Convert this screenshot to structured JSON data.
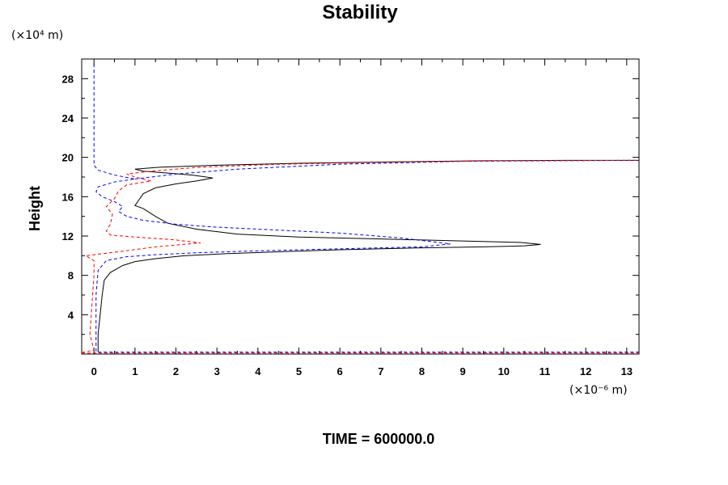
{
  "chart_data": {
    "type": "line",
    "title": "Stability",
    "ylabel": "Height",
    "y_unit": "(×10⁴ m)",
    "x_unit": "(×10⁻⁶ m)",
    "footer": "TIME = 600000.0",
    "xlim": [
      -0.3,
      13.3
    ],
    "ylim": [
      0,
      30
    ],
    "x_ticks": [
      0,
      1,
      2,
      3,
      4,
      5,
      6,
      7,
      8,
      9,
      10,
      11,
      12,
      13
    ],
    "y_ticks": [
      4,
      8,
      12,
      16,
      20,
      24,
      28
    ],
    "series": [
      {
        "style": "solid",
        "color": "#000000",
        "points": [
          [
            0.1,
            0.2
          ],
          [
            0.1,
            2
          ],
          [
            0.15,
            4
          ],
          [
            0.2,
            6
          ],
          [
            0.25,
            7.5
          ],
          [
            0.4,
            8.3
          ],
          [
            0.7,
            9.0
          ],
          [
            1.0,
            9.4
          ],
          [
            1.5,
            9.7
          ],
          [
            2.2,
            10.0
          ],
          [
            3.2,
            10.2
          ],
          [
            4.5,
            10.4
          ],
          [
            6.0,
            10.6
          ],
          [
            8.0,
            10.8
          ],
          [
            9.5,
            10.9
          ],
          [
            10.5,
            11.0
          ],
          [
            10.9,
            11.15
          ],
          [
            10.4,
            11.35
          ],
          [
            9.0,
            11.5
          ],
          [
            7.0,
            11.7
          ],
          [
            5.0,
            11.9
          ],
          [
            3.5,
            12.2
          ],
          [
            2.5,
            12.7
          ],
          [
            1.8,
            13.3
          ],
          [
            1.5,
            14.0
          ],
          [
            1.2,
            14.8
          ],
          [
            1.0,
            15.1
          ],
          [
            1.1,
            15.7
          ],
          [
            1.2,
            16.3
          ],
          [
            1.5,
            16.9
          ],
          [
            2.0,
            17.3
          ],
          [
            2.5,
            17.6
          ],
          [
            2.9,
            17.9
          ],
          [
            2.4,
            18.2
          ],
          [
            1.8,
            18.4
          ],
          [
            1.2,
            18.6
          ],
          [
            1.0,
            18.8
          ],
          [
            1.6,
            19.0
          ],
          [
            3.0,
            19.2
          ],
          [
            5.0,
            19.4
          ],
          [
            7.5,
            19.55
          ],
          [
            9.5,
            19.65
          ],
          [
            11.5,
            19.7
          ],
          [
            13.3,
            19.7
          ]
        ]
      },
      {
        "style": "dashed",
        "color": "#0000ff",
        "points": [
          [
            0.0,
            29.5
          ],
          [
            0.0,
            19.2
          ],
          [
            0.1,
            18.7
          ],
          [
            0.5,
            18.2
          ],
          [
            1.0,
            17.8
          ],
          [
            0.5,
            17.5
          ],
          [
            0.1,
            17.0
          ],
          [
            0.05,
            16.5
          ],
          [
            0.2,
            16.0
          ],
          [
            0.5,
            15.5
          ],
          [
            0.7,
            15.0
          ],
          [
            0.6,
            14.5
          ],
          [
            0.8,
            14.0
          ],
          [
            1.2,
            13.6
          ],
          [
            2.0,
            13.2
          ],
          [
            3.0,
            12.9
          ],
          [
            4.5,
            12.6
          ],
          [
            6.0,
            12.3
          ],
          [
            7.5,
            11.8
          ],
          [
            8.7,
            11.2
          ],
          [
            8.0,
            10.9
          ],
          [
            6.0,
            10.7
          ],
          [
            4.0,
            10.5
          ],
          [
            2.5,
            10.3
          ],
          [
            1.5,
            10.1
          ],
          [
            0.8,
            9.9
          ],
          [
            0.3,
            9.5
          ],
          [
            0.1,
            8.5
          ],
          [
            0.05,
            6
          ],
          [
            0.05,
            3
          ],
          [
            0.05,
            0.2
          ],
          [
            13.3,
            0.2
          ]
        ],
        "extra": [
          [
            1.0,
            17.8
          ],
          [
            2.0,
            18.3
          ],
          [
            3.5,
            18.8
          ],
          [
            6.0,
            19.3
          ],
          [
            9.0,
            19.6
          ],
          [
            13.3,
            19.7
          ]
        ]
      },
      {
        "style": "dashed",
        "color": "#ff0000",
        "points": [
          [
            -0.3,
            0.15
          ],
          [
            0.0,
            0.4
          ],
          [
            -0.1,
            2
          ],
          [
            -0.05,
            5
          ],
          [
            0.0,
            8.0
          ],
          [
            0.0,
            9.5
          ],
          [
            -0.2,
            10.0
          ],
          [
            0.6,
            10.4
          ],
          [
            1.5,
            10.9
          ],
          [
            2.6,
            11.3
          ],
          [
            2.0,
            11.6
          ],
          [
            1.0,
            11.9
          ],
          [
            0.4,
            12.1
          ],
          [
            0.3,
            12.5
          ],
          [
            0.4,
            13.2
          ],
          [
            0.45,
            14.2
          ],
          [
            0.3,
            15.0
          ],
          [
            0.5,
            15.8
          ],
          [
            0.6,
            16.6
          ],
          [
            0.8,
            17.2
          ],
          [
            1.4,
            17.6
          ],
          [
            1.0,
            18.0
          ],
          [
            0.8,
            18.3
          ],
          [
            1.4,
            18.6
          ],
          [
            2.6,
            19.0
          ],
          [
            4.5,
            19.3
          ],
          [
            7.0,
            19.5
          ],
          [
            10.0,
            19.65
          ],
          [
            13.3,
            19.7
          ]
        ],
        "extra": [
          [
            -0.3,
            0.1
          ],
          [
            13.3,
            0.1
          ]
        ]
      }
    ]
  }
}
